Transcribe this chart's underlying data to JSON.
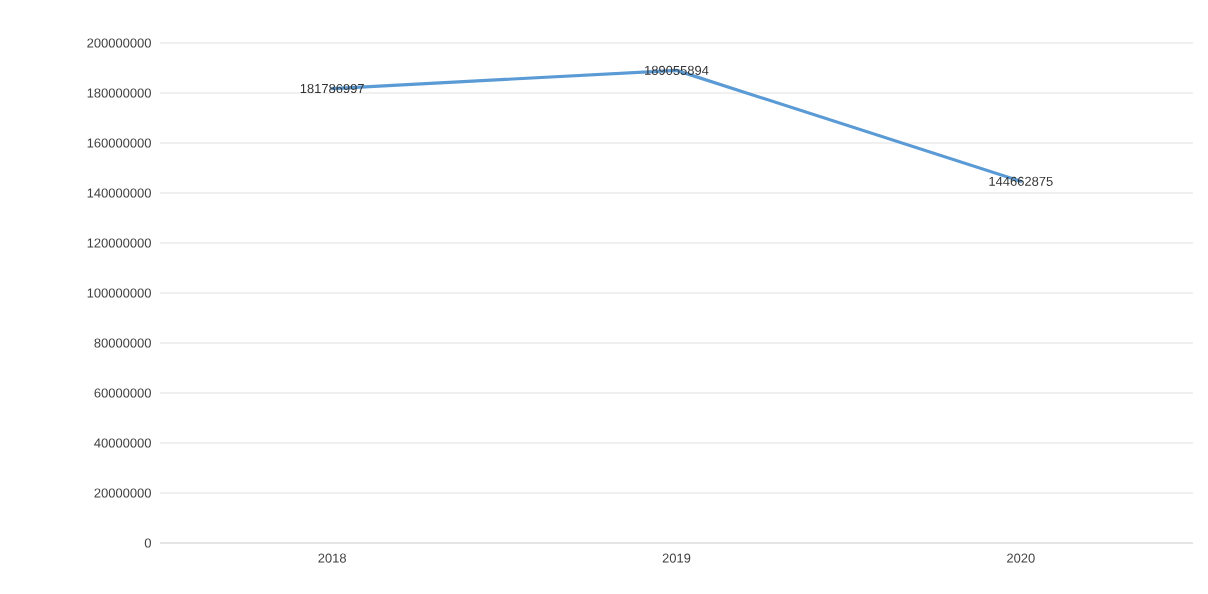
{
  "chart_data": {
    "type": "line",
    "categories": [
      "2018",
      "2019",
      "2020"
    ],
    "series": [
      {
        "color": "#5b9bd5",
        "values": [
          181786997,
          189055894,
          144662875
        ]
      }
    ],
    "ylim": [
      0,
      200000000
    ],
    "yticks": [
      0,
      20000000,
      40000000,
      60000000,
      80000000,
      100000000,
      120000000,
      140000000,
      160000000,
      180000000,
      200000000
    ],
    "grid": "y",
    "data_labels": true,
    "marker": "none",
    "line_style": "solid"
  }
}
